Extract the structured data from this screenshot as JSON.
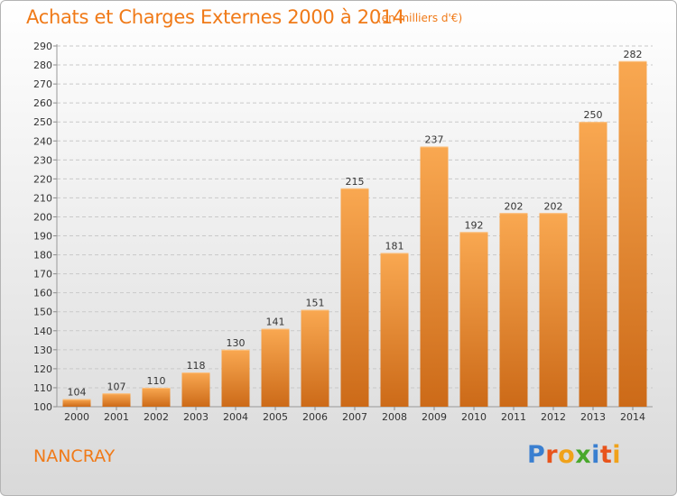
{
  "header": {
    "title": "Achats et Charges Externes 2000 à 2014",
    "unit": "(en milliers d'€)"
  },
  "footer": {
    "town": "NANCRAY",
    "logo": "Proxiti"
  },
  "colors": {
    "accent": "#f07a18",
    "bar_light": "#f9a851",
    "bar_dark": "#cc6a18",
    "logo_letters": [
      "#3a7fd0",
      "#e8541c",
      "#f0a21a",
      "#49a82c",
      "#3a7fd0",
      "#e8541c",
      "#f0a21a"
    ]
  },
  "chart_data": {
    "type": "bar",
    "categories": [
      "2000",
      "2001",
      "2002",
      "2003",
      "2004",
      "2005",
      "2006",
      "2007",
      "2008",
      "2009",
      "2010",
      "2011",
      "2012",
      "2013",
      "2014"
    ],
    "values": [
      104,
      107,
      110,
      118,
      130,
      141,
      151,
      215,
      181,
      237,
      192,
      202,
      202,
      250,
      282
    ],
    "title": "Achats et Charges Externes 2000 à 2014",
    "subtitle": "(en milliers d'€)",
    "ylim": [
      100,
      290
    ],
    "yticks": [
      100,
      110,
      120,
      130,
      140,
      150,
      160,
      170,
      180,
      190,
      200,
      210,
      220,
      230,
      240,
      250,
      260,
      270,
      280,
      290
    ],
    "grid": true,
    "data_labels": true
  }
}
